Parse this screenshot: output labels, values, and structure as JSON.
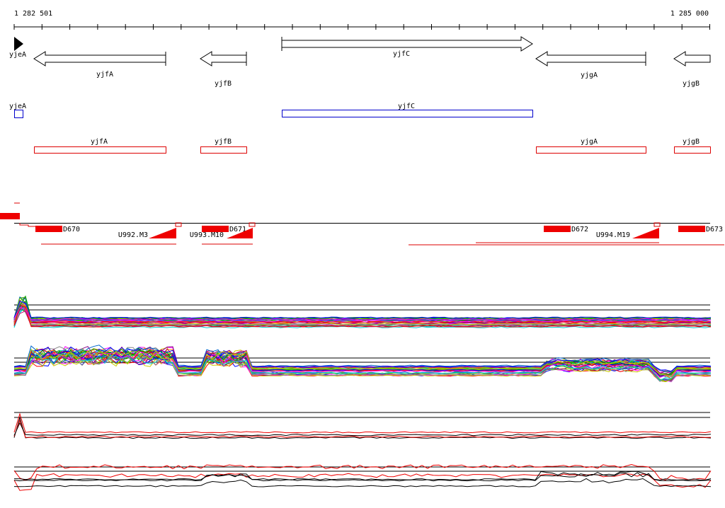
{
  "ruler": {
    "start": "1 282 501",
    "end": "1 285 000"
  },
  "genes": [
    "yjeA",
    "yjfA",
    "yjfB",
    "yjfC",
    "yjgA",
    "yjgB"
  ],
  "cds": [
    "yjeA",
    "yjfC"
  ],
  "rna": [
    "yjfA",
    "yjfB",
    "yjgA",
    "yjgB"
  ],
  "features": [
    "D670",
    "D671",
    "D672",
    "D673",
    "U992.M3",
    "U993.M10",
    "U994.M19"
  ]
}
